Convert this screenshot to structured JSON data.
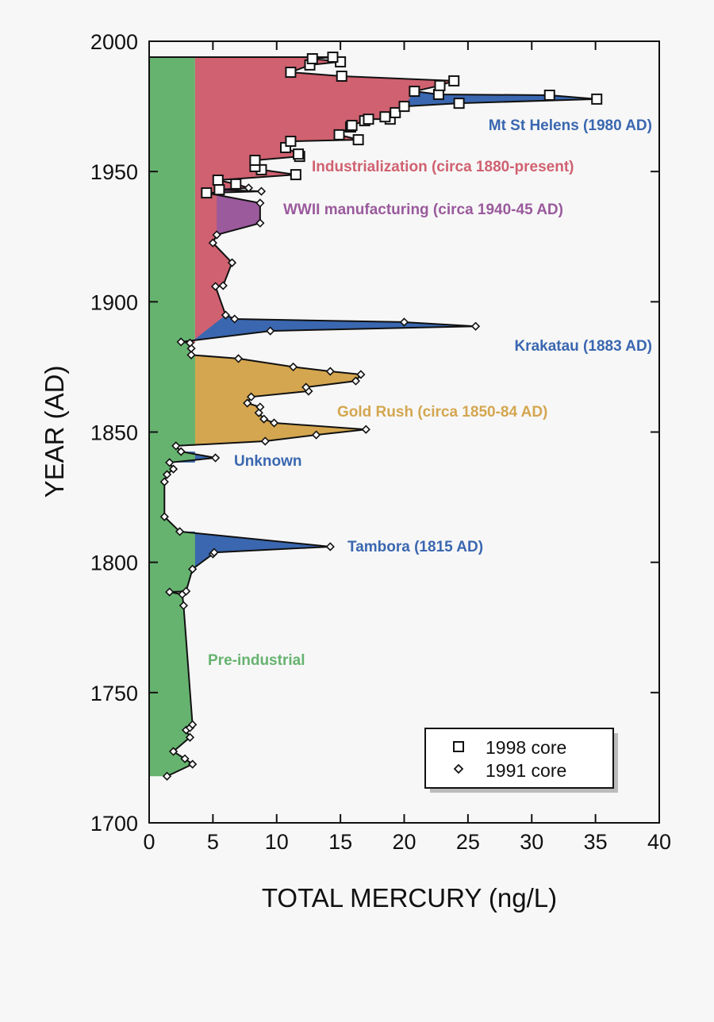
{
  "chart_data": {
    "type": "line",
    "xlabel": "TOTAL MERCURY (ng/L)",
    "ylabel": "YEAR (AD)",
    "xlim": [
      0,
      40
    ],
    "ylim": [
      1700,
      2000
    ],
    "xticks": [
      "0",
      "5",
      "10",
      "15",
      "20",
      "25",
      "30",
      "35",
      "40"
    ],
    "yticks": [
      "1700",
      "1750",
      "1800",
      "1850",
      "1900",
      "1950",
      "2000"
    ],
    "grid": false,
    "legend_position": "bottom-right",
    "series": [
      {
        "name": "1998 core",
        "marker": "square",
        "points": [
          [
            4.5,
            1941.8
          ],
          [
            5.5,
            1943.0
          ],
          [
            6.8,
            1945.2
          ],
          [
            5.4,
            1946.7
          ],
          [
            11.5,
            1948.8
          ],
          [
            8.8,
            1950.7
          ],
          [
            8.3,
            1951.9
          ],
          [
            8.3,
            1954.3
          ],
          [
            11.8,
            1955.8
          ],
          [
            11.7,
            1956.7
          ],
          [
            10.7,
            1959.2
          ],
          [
            11.1,
            1961.6
          ],
          [
            16.4,
            1962.2
          ],
          [
            14.9,
            1964.1
          ],
          [
            15.8,
            1967.1
          ],
          [
            15.9,
            1967.7
          ],
          [
            16.9,
            1969.5
          ],
          [
            17.2,
            1970.1
          ],
          [
            18.9,
            1970.1
          ],
          [
            18.5,
            1971.0
          ],
          [
            19.3,
            1972.6
          ],
          [
            20.0,
            1975.0
          ],
          [
            24.3,
            1976.2
          ],
          [
            35.1,
            1977.8
          ],
          [
            31.4,
            1979.3
          ],
          [
            22.7,
            1979.6
          ],
          [
            20.8,
            1980.8
          ],
          [
            22.8,
            1983.0
          ],
          [
            23.9,
            1984.8
          ],
          [
            15.1,
            1986.6
          ],
          [
            11.1,
            1988.1
          ],
          [
            12.6,
            1990.9
          ],
          [
            15.0,
            1992.1
          ],
          [
            12.8,
            1993.3
          ],
          [
            14.4,
            1993.9
          ]
        ]
      },
      {
        "name": "1991 core",
        "marker": "diamond",
        "points": [
          [
            1.4,
            1717.9
          ],
          [
            3.4,
            1722.5
          ],
          [
            2.8,
            1724.6
          ],
          [
            1.9,
            1727.4
          ],
          [
            3.2,
            1732.8
          ],
          [
            2.9,
            1735.6
          ],
          [
            3.2,
            1736.5
          ],
          [
            3.4,
            1737.7
          ],
          [
            2.7,
            1783.4
          ],
          [
            2.6,
            1787.7
          ],
          [
            1.6,
            1788.6
          ],
          [
            2.9,
            1788.9
          ],
          [
            3.4,
            1797.4
          ],
          [
            5.0,
            1803.2
          ],
          [
            5.1,
            1803.8
          ],
          [
            14.2,
            1806.0
          ],
          [
            2.4,
            1811.8
          ],
          [
            1.2,
            1817.5
          ],
          [
            1.2,
            1830.9
          ],
          [
            1.4,
            1833.7
          ],
          [
            1.9,
            1835.8
          ],
          [
            1.6,
            1838.3
          ],
          [
            5.2,
            1840.1
          ],
          [
            2.5,
            1842.5
          ],
          [
            2.1,
            1844.7
          ],
          [
            9.1,
            1846.5
          ],
          [
            13.1,
            1848.9
          ],
          [
            17.0,
            1851.0
          ],
          [
            9.8,
            1853.5
          ],
          [
            9.0,
            1855.0
          ],
          [
            8.6,
            1857.4
          ],
          [
            8.7,
            1859.6
          ],
          [
            7.7,
            1861.1
          ],
          [
            8.0,
            1863.5
          ],
          [
            12.5,
            1865.7
          ],
          [
            12.3,
            1867.2
          ],
          [
            16.2,
            1869.6
          ],
          [
            16.6,
            1872.1
          ],
          [
            14.2,
            1873.3
          ],
          [
            11.3,
            1875.0
          ],
          [
            7.0,
            1878.2
          ],
          [
            3.3,
            1879.6
          ],
          [
            3.3,
            1882.1
          ],
          [
            3.2,
            1884.2
          ],
          [
            2.5,
            1884.6
          ],
          [
            9.5,
            1888.8
          ],
          [
            25.6,
            1890.6
          ],
          [
            20.0,
            1892.2
          ],
          [
            6.7,
            1893.4
          ],
          [
            6.0,
            1894.9
          ],
          [
            5.2,
            1905.9
          ],
          [
            5.8,
            1906.2
          ],
          [
            6.5,
            1915.0
          ],
          [
            5.0,
            1922.6
          ],
          [
            5.3,
            1925.7
          ],
          [
            8.7,
            1930.2
          ],
          [
            8.7,
            1937.9
          ],
          [
            8.8,
            1942.4
          ],
          [
            7.8,
            1943.7
          ]
        ]
      }
    ],
    "regions": [
      {
        "label": "Pre-industrial",
        "color": "#66b36f",
        "baseline": 0,
        "years": [
          1717.9,
          1993.9
        ]
      },
      {
        "label": "Industrialization (circa 1880-present)",
        "color": "#d06170",
        "baseline": 3.6,
        "years": [
          1884.2,
          1993.9
        ]
      },
      {
        "label": "WWII manufacturing (circa 1940-45 AD)",
        "color": "#9a5a9c",
        "baseline": 5.3,
        "years": [
          1925.7,
          1943.7
        ]
      },
      {
        "label": "Mt St Helens (1980 AD)",
        "color": "#3a67b0",
        "baseline": null,
        "years": [
          1975.0,
          1980.8
        ]
      },
      {
        "label": "Krakatau (1883 AD)",
        "color": "#3a67b0",
        "baseline": null,
        "years": [
          1884.2,
          1894.9
        ]
      },
      {
        "label": "Gold Rush (circa 1850-84 AD)",
        "color": "#d4a650",
        "baseline": 3.6,
        "years": [
          1844.7,
          1879.6
        ]
      },
      {
        "label": "Unknown",
        "color": "#3a67b0",
        "baseline": 3.6,
        "years": [
          1838.3,
          1842.5
        ]
      },
      {
        "label": "Tambora (1815 AD)",
        "color": "#3a67b0",
        "baseline": 3.6,
        "years": [
          1797.4,
          1811.8
        ]
      }
    ]
  }
}
